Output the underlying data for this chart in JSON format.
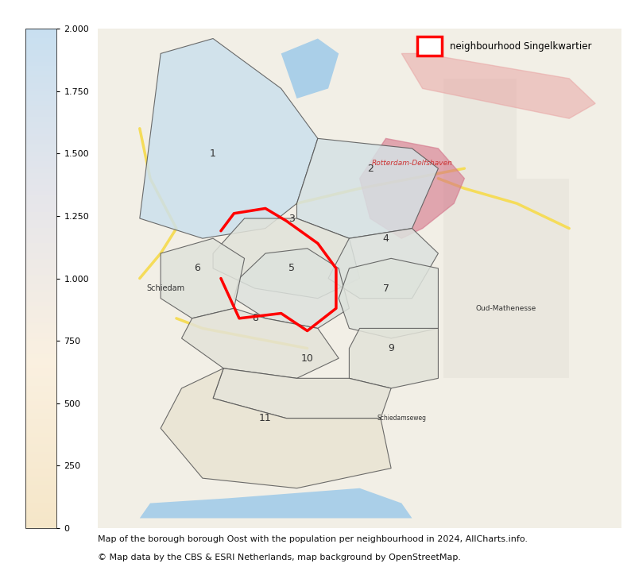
{
  "title": "",
  "colorbar_label": "",
  "colorbar_ticks": [
    0,
    250,
    500,
    750,
    1000,
    1250,
    1500,
    1750,
    2000
  ],
  "colorbar_ticklabels": [
    "0",
    "250",
    "500",
    "750",
    "1.000",
    "1.250",
    "1.500",
    "1.750",
    "2.000"
  ],
  "colorbar_vmin": 0,
  "colorbar_vmax": 2000,
  "legend_label": "neighbourhood Singelkwartier",
  "legend_patch_color": "#ff0000",
  "caption_line1": "Map of the borough borough Oost with the population per neighbourhood in 2024, AllCharts.info.",
  "caption_line2": "© Map data by the CBS & ESRI Netherlands, map background by OpenStreetMap.",
  "background_color": "#ffffff",
  "colorbar_colors_bottom": "#f5e6c8",
  "colorbar_colors_top": "#c8dff0",
  "map_background": "#f0efe9",
  "fig_width": 7.94,
  "fig_height": 7.19,
  "dpi": 100
}
